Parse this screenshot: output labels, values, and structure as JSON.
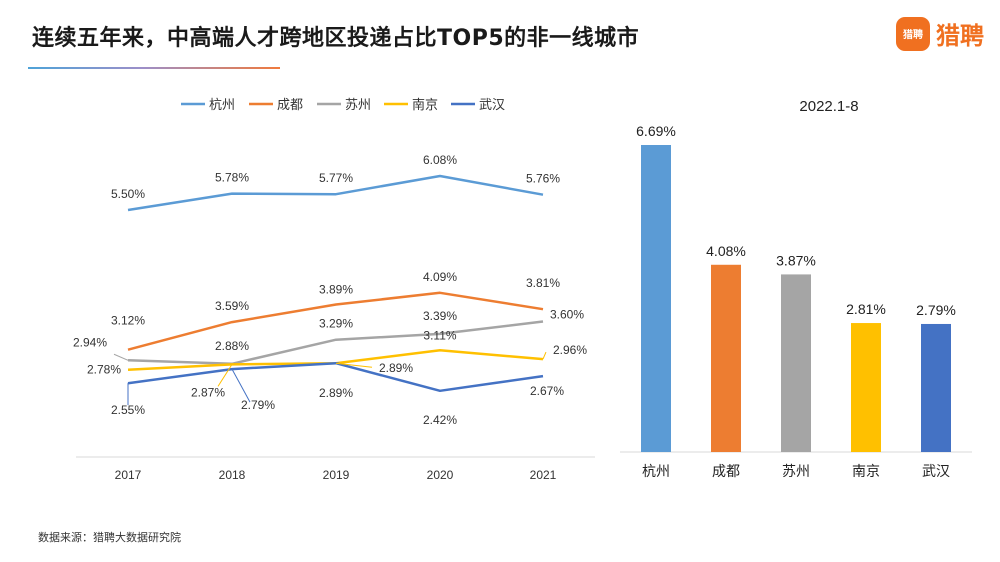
{
  "header": {
    "title": "连续五年来，中高端人才跨地区投递占比TOP5的非一线城市"
  },
  "logo": {
    "badge_text": "猎聘",
    "name": "猎聘"
  },
  "footer": {
    "source": "数据来源：猎聘大数据研究院"
  },
  "chart_data": [
    {
      "type": "line",
      "categories": [
        "2017",
        "2018",
        "2019",
        "2020",
        "2021"
      ],
      "legend": "top",
      "series": [
        {
          "name": "杭州",
          "color": "#5b9bd5",
          "values": [
            5.5,
            5.78,
            5.77,
            6.08,
            5.76
          ],
          "labels": [
            "5.50%",
            "5.78%",
            "5.77%",
            "6.08%",
            "5.76%"
          ]
        },
        {
          "name": "成都",
          "color": "#ed7d31",
          "values": [
            3.12,
            3.59,
            3.89,
            4.09,
            3.81
          ],
          "labels": [
            "3.12%",
            "3.59%",
            "3.89%",
            "4.09%",
            "3.81%"
          ]
        },
        {
          "name": "苏州",
          "color": "#a5a5a5",
          "values": [
            2.94,
            2.88,
            3.29,
            3.39,
            3.6
          ],
          "labels": [
            "2.94%",
            "2.88%",
            "3.29%",
            "3.39%",
            "3.60%"
          ]
        },
        {
          "name": "南京",
          "color": "#ffc000",
          "values": [
            2.78,
            2.87,
            2.89,
            3.11,
            2.96
          ],
          "labels": [
            "2.78%",
            "2.87%",
            "2.89%",
            "3.11%",
            "2.96%"
          ]
        },
        {
          "name": "武汉",
          "color": "#4472c4",
          "values": [
            2.55,
            2.79,
            2.89,
            2.42,
            2.67
          ],
          "labels": [
            "2.55%",
            "2.79%",
            "2.89%",
            "2.42%",
            "2.67%"
          ]
        }
      ]
    },
    {
      "type": "bar",
      "title": "2022.1-8",
      "categories": [
        "杭州",
        "成都",
        "苏州",
        "南京",
        "武汉"
      ],
      "values": [
        6.69,
        4.08,
        3.87,
        2.81,
        2.79
      ],
      "labels": [
        "6.69%",
        "4.08%",
        "3.87%",
        "2.81%",
        "2.79%"
      ],
      "colors": [
        "#5b9bd5",
        "#ed7d31",
        "#a5a5a5",
        "#ffc000",
        "#4472c4"
      ]
    }
  ]
}
